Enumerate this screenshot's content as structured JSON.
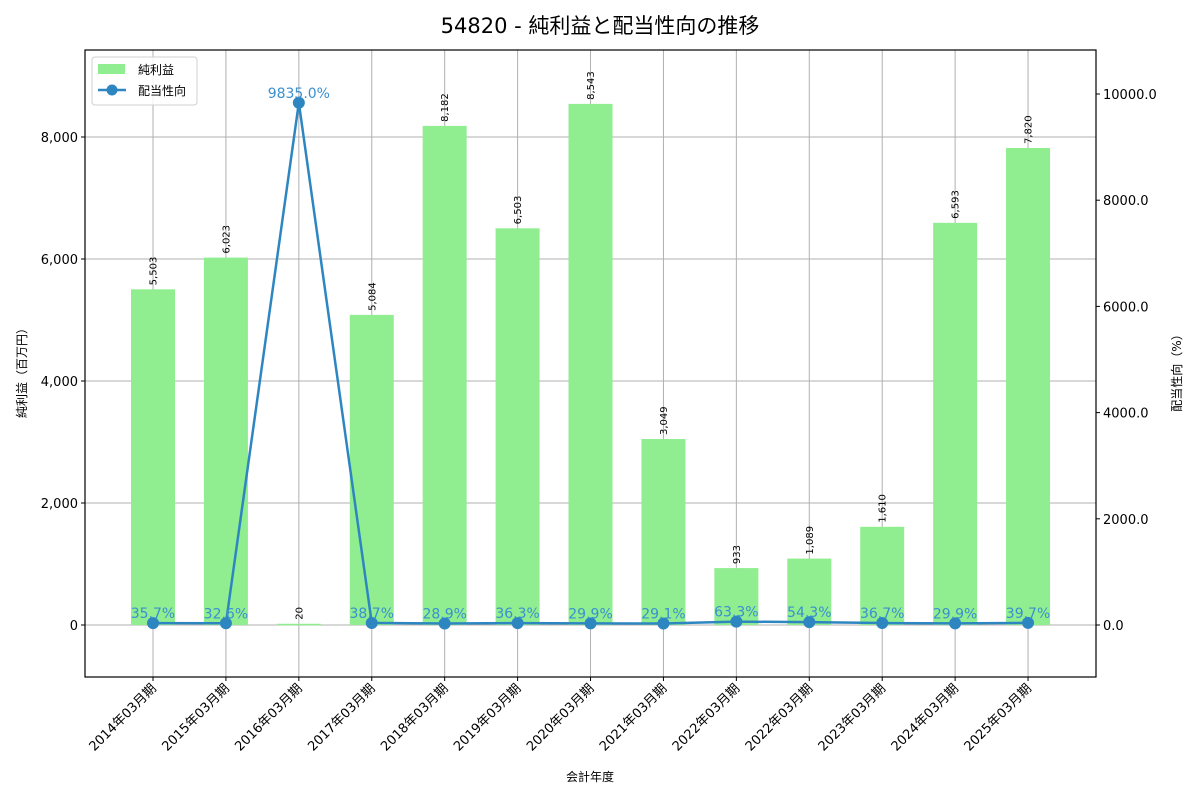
{
  "chart_data": {
    "type": "bar+line",
    "title": "54820 - 純利益と配当性向の推移",
    "xlabel": "会計年度",
    "ylabel_left": "純利益（百万円）",
    "ylabel_right": "配当性向（%）",
    "categories": [
      "2014年03月期",
      "2015年03月期",
      "2016年03月期",
      "2017年03月期",
      "2018年03月期",
      "2019年03月期",
      "2020年03月期",
      "2021年03月期",
      "2022年03月期",
      "2022年03月期",
      "2023年03月期",
      "2024年03月期",
      "2025年03月期"
    ],
    "series": [
      {
        "name": "純利益",
        "type": "bar",
        "axis": "left",
        "color": "#90ee90",
        "values": [
          5503,
          6023,
          20,
          5084,
          8182,
          6503,
          8543,
          3049,
          933,
          1089,
          1610,
          6593,
          7820
        ],
        "labels": [
          "5,503",
          "6,023",
          "20",
          "5,084",
          "8,182",
          "6,503",
          "8,543",
          "3,049",
          "933",
          "1,089",
          "1,610",
          "6,593",
          "7,820"
        ]
      },
      {
        "name": "配当性向",
        "type": "line",
        "axis": "right",
        "color": "#2e86c1",
        "values": [
          35.7,
          32.6,
          9835.0,
          38.7,
          28.9,
          36.3,
          29.9,
          29.1,
          63.3,
          54.3,
          36.7,
          29.9,
          39.7
        ],
        "labels": [
          "35.7%",
          "32.6%",
          "9835.0%",
          "38.7%",
          "28.9%",
          "36.3%",
          "29.9%",
          "29.1%",
          "63.3%",
          "54.3%",
          "36.7%",
          "29.9%",
          "39.7%"
        ]
      }
    ],
    "ylim_left": [
      -850,
      9400
    ],
    "ylim_right": [
      -1000,
      10800
    ],
    "yticks_left": [
      "0",
      "2,000",
      "4,000",
      "6,000",
      "8,000"
    ],
    "yticks_right": [
      "0.0",
      "2000.0",
      "4000.0",
      "6000.0",
      "8000.0",
      "10000.0"
    ],
    "grid": true,
    "legend_position": "upper left",
    "legend": [
      "純利益",
      "配当性向"
    ]
  }
}
